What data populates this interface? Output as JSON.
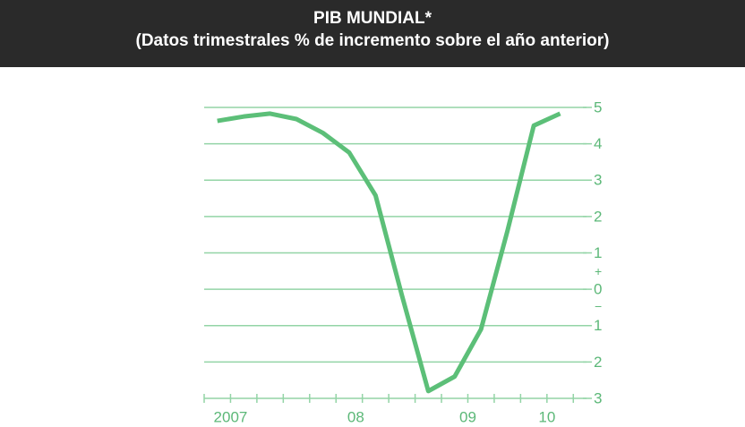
{
  "chart_data": {
    "type": "line",
    "title": "PIB MUNDIAL*",
    "subtitle": "(Datos trimestrales % de incremento sobre el año anterior)",
    "x": [
      0.5,
      1.5,
      2.5,
      3.5,
      4.5,
      5.5,
      6.5,
      7.5,
      8.5,
      9.5,
      10.5,
      11.5,
      12.5,
      13.5
    ],
    "series": [
      {
        "name": "PIB mundial",
        "color": "#5cbf78",
        "values": [
          4.63,
          4.75,
          4.83,
          4.68,
          4.3,
          3.76,
          2.58,
          -0.17,
          -2.8,
          -2.4,
          -1.1,
          1.6,
          4.5,
          4.83
        ]
      }
    ],
    "xlim": [
      0,
      14.5
    ],
    "xticks": [
      {
        "value": 1,
        "label": "2007"
      },
      {
        "value": 5.75,
        "label": "08"
      },
      {
        "value": 10,
        "label": "09"
      },
      {
        "value": 13,
        "label": "10"
      }
    ],
    "ylim": [
      -3,
      5
    ],
    "yticks": [
      5,
      4,
      3,
      2,
      1,
      0,
      {
        "value": -1,
        "label": "1"
      },
      {
        "value": -2,
        "label": "2"
      },
      {
        "value": -3,
        "label": "3"
      }
    ],
    "sign_labels": [
      "+",
      "−"
    ],
    "grid": true,
    "grid_color": "#93d4a6"
  }
}
